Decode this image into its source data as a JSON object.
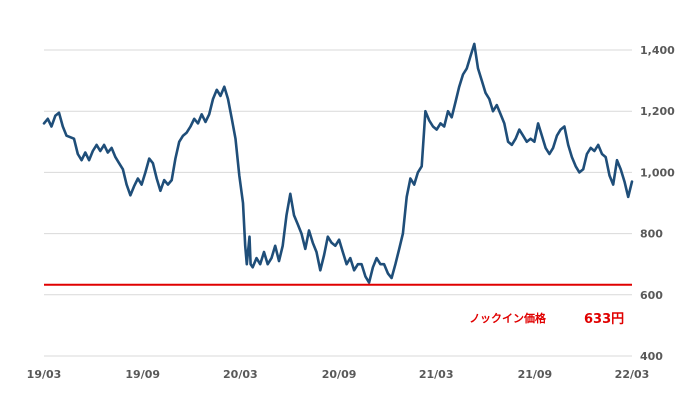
{
  "chart_data": {
    "type": "line",
    "title": "",
    "xlabel": "",
    "ylabel": "",
    "y_axis_position": "right",
    "ylim": [
      400,
      1450
    ],
    "y_ticks": [
      400,
      600,
      800,
      1000,
      1200,
      1400
    ],
    "y_tick_labels": [
      "400",
      "600",
      "800",
      "1,000",
      "1,200",
      "1,400"
    ],
    "x_tick_dates": [
      "2019-03-01",
      "2019-09-01",
      "2020-03-01",
      "2020-09-01",
      "2021-03-01",
      "2021-09-01",
      "2022-03-01"
    ],
    "x_tick_labels": [
      "19/03",
      "19/09",
      "20/03",
      "20/09",
      "21/03",
      "21/09",
      "22/03"
    ],
    "grid": "horizontal",
    "series": [
      {
        "color": "#1f4e79",
        "points": [
          [
            "2019-03-01",
            1160
          ],
          [
            "2019-03-08",
            1175
          ],
          [
            "2019-03-15",
            1150
          ],
          [
            "2019-03-22",
            1185
          ],
          [
            "2019-03-29",
            1195
          ],
          [
            "2019-04-05",
            1150
          ],
          [
            "2019-04-12",
            1120
          ],
          [
            "2019-04-19",
            1115
          ],
          [
            "2019-04-26",
            1110
          ],
          [
            "2019-05-03",
            1060
          ],
          [
            "2019-05-10",
            1040
          ],
          [
            "2019-05-17",
            1065
          ],
          [
            "2019-05-24",
            1040
          ],
          [
            "2019-05-31",
            1070
          ],
          [
            "2019-06-07",
            1090
          ],
          [
            "2019-06-14",
            1070
          ],
          [
            "2019-06-21",
            1090
          ],
          [
            "2019-06-28",
            1065
          ],
          [
            "2019-07-05",
            1080
          ],
          [
            "2019-07-12",
            1050
          ],
          [
            "2019-07-19",
            1030
          ],
          [
            "2019-07-26",
            1010
          ],
          [
            "2019-08-02",
            960
          ],
          [
            "2019-08-09",
            925
          ],
          [
            "2019-08-16",
            955
          ],
          [
            "2019-08-23",
            980
          ],
          [
            "2019-08-30",
            960
          ],
          [
            "2019-09-06",
            1000
          ],
          [
            "2019-09-13",
            1045
          ],
          [
            "2019-09-20",
            1030
          ],
          [
            "2019-09-27",
            980
          ],
          [
            "2019-10-04",
            940
          ],
          [
            "2019-10-11",
            975
          ],
          [
            "2019-10-18",
            960
          ],
          [
            "2019-10-25",
            975
          ],
          [
            "2019-11-01",
            1045
          ],
          [
            "2019-11-08",
            1100
          ],
          [
            "2019-11-15",
            1120
          ],
          [
            "2019-11-22",
            1130
          ],
          [
            "2019-11-29",
            1150
          ],
          [
            "2019-12-06",
            1175
          ],
          [
            "2019-12-13",
            1160
          ],
          [
            "2019-12-20",
            1190
          ],
          [
            "2019-12-27",
            1165
          ],
          [
            "2020-01-03",
            1190
          ],
          [
            "2020-01-10",
            1240
          ],
          [
            "2020-01-17",
            1270
          ],
          [
            "2020-01-24",
            1250
          ],
          [
            "2020-01-31",
            1280
          ],
          [
            "2020-02-07",
            1240
          ],
          [
            "2020-02-14",
            1175
          ],
          [
            "2020-02-21",
            1110
          ],
          [
            "2020-02-28",
            990
          ],
          [
            "2020-03-06",
            900
          ],
          [
            "2020-03-10",
            760
          ],
          [
            "2020-03-13",
            700
          ],
          [
            "2020-03-18",
            790
          ],
          [
            "2020-03-20",
            700
          ],
          [
            "2020-03-24",
            690
          ],
          [
            "2020-03-31",
            720
          ],
          [
            "2020-04-07",
            700
          ],
          [
            "2020-04-14",
            740
          ],
          [
            "2020-04-21",
            700
          ],
          [
            "2020-04-28",
            720
          ],
          [
            "2020-05-05",
            760
          ],
          [
            "2020-05-12",
            710
          ],
          [
            "2020-05-19",
            760
          ],
          [
            "2020-05-26",
            860
          ],
          [
            "2020-06-02",
            930
          ],
          [
            "2020-06-09",
            860
          ],
          [
            "2020-06-16",
            830
          ],
          [
            "2020-06-23",
            800
          ],
          [
            "2020-06-30",
            750
          ],
          [
            "2020-07-07",
            810
          ],
          [
            "2020-07-14",
            770
          ],
          [
            "2020-07-21",
            740
          ],
          [
            "2020-07-28",
            680
          ],
          [
            "2020-08-04",
            730
          ],
          [
            "2020-08-11",
            790
          ],
          [
            "2020-08-18",
            770
          ],
          [
            "2020-08-25",
            760
          ],
          [
            "2020-09-01",
            780
          ],
          [
            "2020-09-08",
            740
          ],
          [
            "2020-09-15",
            700
          ],
          [
            "2020-09-22",
            720
          ],
          [
            "2020-09-29",
            680
          ],
          [
            "2020-10-06",
            700
          ],
          [
            "2020-10-13",
            700
          ],
          [
            "2020-10-20",
            660
          ],
          [
            "2020-10-27",
            640
          ],
          [
            "2020-11-03",
            690
          ],
          [
            "2020-11-10",
            720
          ],
          [
            "2020-11-17",
            700
          ],
          [
            "2020-11-24",
            700
          ],
          [
            "2020-12-01",
            670
          ],
          [
            "2020-12-08",
            655
          ],
          [
            "2020-12-15",
            700
          ],
          [
            "2020-12-22",
            750
          ],
          [
            "2020-12-29",
            800
          ],
          [
            "2021-01-05",
            920
          ],
          [
            "2021-01-12",
            980
          ],
          [
            "2021-01-19",
            960
          ],
          [
            "2021-01-26",
            1000
          ],
          [
            "2021-02-02",
            1020
          ],
          [
            "2021-02-09",
            1200
          ],
          [
            "2021-02-16",
            1170
          ],
          [
            "2021-02-23",
            1150
          ],
          [
            "2021-03-02",
            1140
          ],
          [
            "2021-03-09",
            1160
          ],
          [
            "2021-03-16",
            1150
          ],
          [
            "2021-03-23",
            1200
          ],
          [
            "2021-03-30",
            1180
          ],
          [
            "2021-04-06",
            1230
          ],
          [
            "2021-04-13",
            1280
          ],
          [
            "2021-04-20",
            1320
          ],
          [
            "2021-04-27",
            1340
          ],
          [
            "2021-05-04",
            1380
          ],
          [
            "2021-05-11",
            1420
          ],
          [
            "2021-05-18",
            1340
          ],
          [
            "2021-05-25",
            1300
          ],
          [
            "2021-06-01",
            1260
          ],
          [
            "2021-06-08",
            1240
          ],
          [
            "2021-06-15",
            1200
          ],
          [
            "2021-06-22",
            1220
          ],
          [
            "2021-06-29",
            1190
          ],
          [
            "2021-07-06",
            1160
          ],
          [
            "2021-07-13",
            1100
          ],
          [
            "2021-07-20",
            1090
          ],
          [
            "2021-07-27",
            1110
          ],
          [
            "2021-08-03",
            1140
          ],
          [
            "2021-08-10",
            1120
          ],
          [
            "2021-08-17",
            1100
          ],
          [
            "2021-08-24",
            1110
          ],
          [
            "2021-08-31",
            1100
          ],
          [
            "2021-09-07",
            1160
          ],
          [
            "2021-09-14",
            1120
          ],
          [
            "2021-09-21",
            1080
          ],
          [
            "2021-09-28",
            1060
          ],
          [
            "2021-10-05",
            1080
          ],
          [
            "2021-10-12",
            1120
          ],
          [
            "2021-10-19",
            1140
          ],
          [
            "2021-10-26",
            1150
          ],
          [
            "2021-11-02",
            1090
          ],
          [
            "2021-11-09",
            1050
          ],
          [
            "2021-11-16",
            1020
          ],
          [
            "2021-11-23",
            1000
          ],
          [
            "2021-11-30",
            1010
          ],
          [
            "2021-12-07",
            1060
          ],
          [
            "2021-12-14",
            1080
          ],
          [
            "2021-12-21",
            1070
          ],
          [
            "2021-12-28",
            1090
          ],
          [
            "2022-01-04",
            1060
          ],
          [
            "2022-01-11",
            1050
          ],
          [
            "2022-01-18",
            990
          ],
          [
            "2022-01-25",
            960
          ],
          [
            "2022-02-01",
            1040
          ],
          [
            "2022-02-08",
            1010
          ],
          [
            "2022-02-15",
            970
          ],
          [
            "2022-02-22",
            920
          ],
          [
            "2022-03-01",
            970
          ]
        ]
      }
    ],
    "knock_in": {
      "value": 633,
      "color": "#e00000",
      "label": "ノックイン価格",
      "value_label": "633円"
    }
  }
}
